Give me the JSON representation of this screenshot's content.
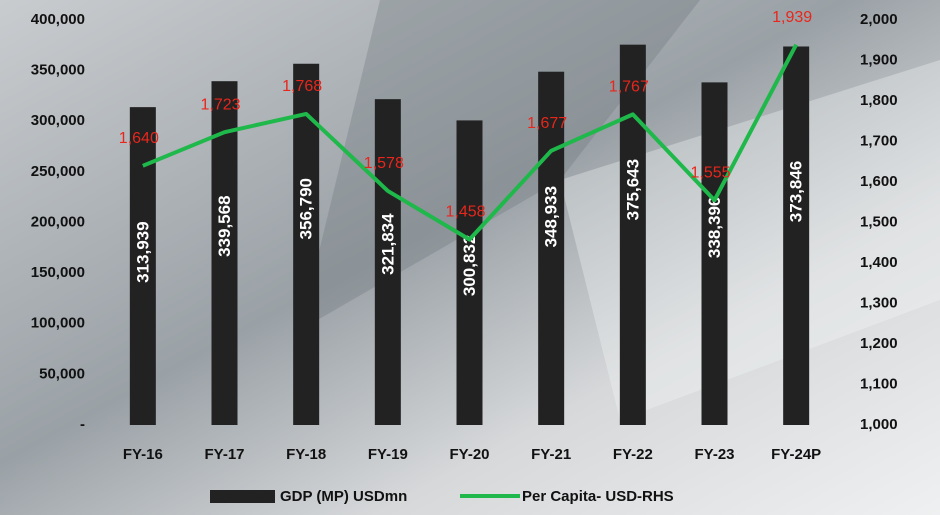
{
  "chart_data": {
    "type": "bar",
    "categories": [
      "FY-16",
      "FY-17",
      "FY-18",
      "FY-19",
      "FY-20",
      "FY-21",
      "FY-22",
      "FY-23",
      "FY-24P"
    ],
    "series": [
      {
        "name": "GDP (MP) USDmn",
        "type": "bar",
        "color": "#222222",
        "values": [
          313939,
          339568,
          356790,
          321834,
          300832,
          348933,
          375643,
          338396,
          373846
        ],
        "value_labels": [
          "313,939",
          "339,568",
          "356,790",
          "321,834",
          "300,832",
          "348,933",
          "375,643",
          "338,396",
          "373,846"
        ]
      },
      {
        "name": "Per Capita- USD-RHS",
        "type": "line",
        "axis": "y2",
        "color": "#1fb84a",
        "values": [
          1640,
          1723,
          1768,
          1578,
          1458,
          1677,
          1767,
          1555,
          1939
        ],
        "value_labels": [
          "1,640",
          "1,723",
          "1,768",
          "1,578",
          "1,458",
          "1,677",
          "1,767",
          "1,555",
          "1,939"
        ]
      }
    ],
    "ylim": [
      0,
      400000
    ],
    "yticks": [
      {
        "value": 0,
        "label": "-"
      },
      {
        "value": 50000,
        "label": "50,000"
      },
      {
        "value": 100000,
        "label": "100,000"
      },
      {
        "value": 150000,
        "label": "150,000"
      },
      {
        "value": 200000,
        "label": "200,000"
      },
      {
        "value": 250000,
        "label": "250,000"
      },
      {
        "value": 300000,
        "label": "300,000"
      },
      {
        "value": 350000,
        "label": "350,000"
      },
      {
        "value": 400000,
        "label": "400,000"
      }
    ],
    "y2lim": [
      1000,
      2000
    ],
    "y2ticks": [
      {
        "value": 1000,
        "label": "1,000"
      },
      {
        "value": 1100,
        "label": "1,100"
      },
      {
        "value": 1200,
        "label": "1,200"
      },
      {
        "value": 1300,
        "label": "1,300"
      },
      {
        "value": 1400,
        "label": "1,400"
      },
      {
        "value": 1500,
        "label": "1,500"
      },
      {
        "value": 1600,
        "label": "1,600"
      },
      {
        "value": 1700,
        "label": "1,700"
      },
      {
        "value": 1800,
        "label": "1,800"
      },
      {
        "value": 1900,
        "label": "1,900"
      },
      {
        "value": 2000,
        "label": "2,000"
      }
    ],
    "legend": "bottom"
  }
}
